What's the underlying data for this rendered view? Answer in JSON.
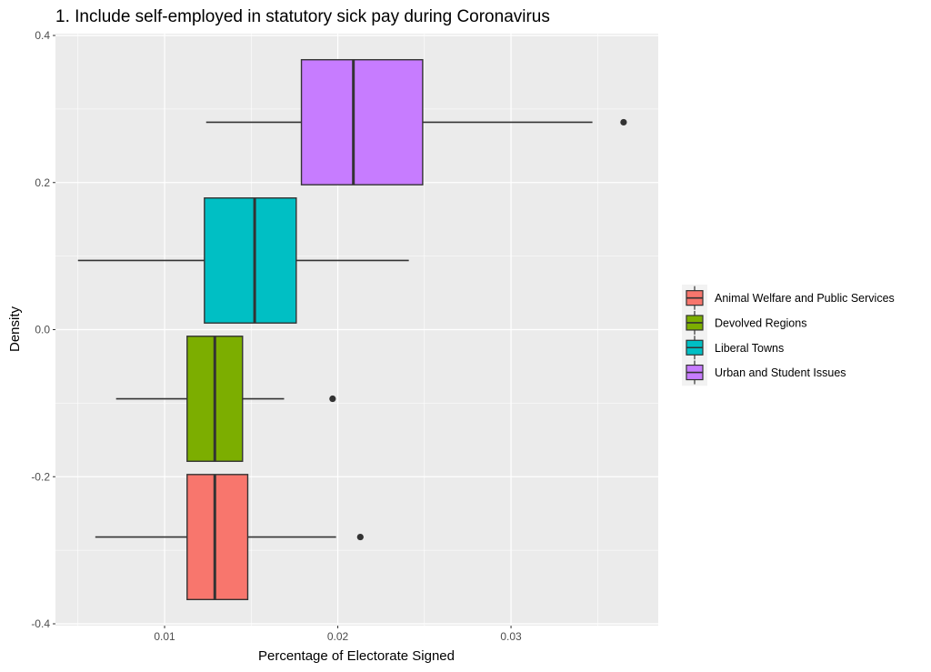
{
  "chart_data": {
    "type": "boxplot",
    "title": "1. Include self-employed in statutory sick pay during Coronavirus",
    "xlabel": "Percentage of Electorate Signed",
    "ylabel": "Density",
    "xlim": [
      0.0037,
      0.0385
    ],
    "ylim": [
      -0.4,
      0.4
    ],
    "x_ticks": [
      {
        "value": 0.01,
        "label": "0.01"
      },
      {
        "value": 0.02,
        "label": "0.02"
      },
      {
        "value": 0.03,
        "label": "0.03"
      }
    ],
    "x_minor": [
      0.005,
      0.015,
      0.025,
      0.035
    ],
    "y_ticks": [
      {
        "value": 0.4,
        "label": "0.4"
      },
      {
        "value": 0.2,
        "label": "0.2"
      },
      {
        "value": 0.0,
        "label": "0.0"
      },
      {
        "value": -0.2,
        "label": "-0.2"
      },
      {
        "value": -0.4,
        "label": "-0.4"
      }
    ],
    "y_minor": [
      0.3,
      0.1,
      -0.1,
      -0.3
    ],
    "grid": true,
    "legend_position": "right",
    "series": [
      {
        "name": "Animal Welfare and Public Services",
        "color": "#F8766D",
        "y_center": -0.282,
        "y_halfwidth": 0.085,
        "whisker_low": 0.006,
        "q1": 0.0113,
        "median": 0.0129,
        "q3": 0.0148,
        "whisker_high": 0.0199,
        "outliers": [
          0.0213
        ]
      },
      {
        "name": "Devolved Regions",
        "color": "#7CAE00",
        "y_center": -0.094,
        "y_halfwidth": 0.085,
        "whisker_low": 0.0072,
        "q1": 0.0113,
        "median": 0.0129,
        "q3": 0.0145,
        "whisker_high": 0.0169,
        "outliers": [
          0.0197
        ]
      },
      {
        "name": "Liberal Towns",
        "color": "#00BFC4",
        "y_center": 0.094,
        "y_halfwidth": 0.085,
        "whisker_low": 0.005,
        "q1": 0.0123,
        "median": 0.0152,
        "q3": 0.0176,
        "whisker_high": 0.0241,
        "outliers": []
      },
      {
        "name": "Urban and Student Issues",
        "color": "#C77CFF",
        "y_center": 0.282,
        "y_halfwidth": 0.085,
        "whisker_low": 0.0124,
        "q1": 0.0179,
        "median": 0.0209,
        "q3": 0.0249,
        "whisker_high": 0.0347,
        "outliers": [
          0.0365
        ]
      }
    ]
  }
}
